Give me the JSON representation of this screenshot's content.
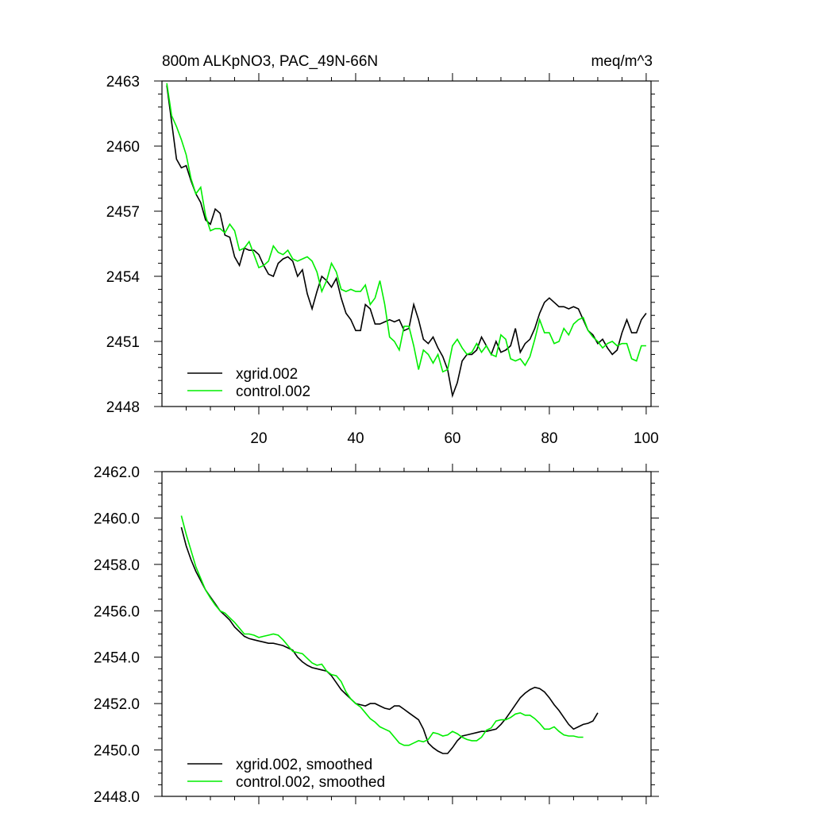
{
  "chart_data": [
    {
      "type": "line",
      "title": "800m ALKpNO3, PAC_49N-66N",
      "units": "meq/m^3",
      "xlim": [
        0,
        101
      ],
      "ylim": [
        2448,
        2463
      ],
      "x_ticks": [
        20,
        40,
        60,
        80,
        100
      ],
      "x_tick_labels": [
        "20",
        "40",
        "60",
        "80",
        "100"
      ],
      "y_ticks": [
        2448,
        2451,
        2454,
        2457,
        2460,
        2463
      ],
      "y_tick_labels": [
        "2448",
        "2451",
        "2454",
        "2457",
        "2460",
        "2463"
      ],
      "legend_position": "bottom-left",
      "series": [
        {
          "name": "xgrid.002",
          "color": "#000000",
          "values": [
            2462.8,
            2461.1,
            2459.4,
            2459.0,
            2459.1,
            2458.4,
            2457.8,
            2457.4,
            2456.6,
            2456.4,
            2457.1,
            2456.9,
            2455.9,
            2455.8,
            2454.9,
            2454.5,
            2455.3,
            2455.2,
            2455.2,
            2455.0,
            2454.5,
            2454.1,
            2454.0,
            2454.6,
            2454.8,
            2454.9,
            2454.7,
            2454.0,
            2454.3,
            2453.2,
            2452.5,
            2453.3,
            2454.0,
            2453.8,
            2453.5,
            2453.9,
            2453.0,
            2452.3,
            2452.0,
            2451.5,
            2451.5,
            2452.7,
            2452.5,
            2451.8,
            2451.8,
            2451.9,
            2452.0,
            2451.9,
            2452.0,
            2451.5,
            2451.6,
            2452.7,
            2452.0,
            2451.1,
            2450.9,
            2451.2,
            2450.7,
            2450.3,
            2449.7,
            2448.5,
            2449.1,
            2450.1,
            2450.4,
            2450.4,
            2450.6,
            2451.2,
            2450.8,
            2450.4,
            2451.0,
            2450.5,
            2450.6,
            2450.8,
            2451.6,
            2450.5,
            2450.9,
            2451.1,
            2451.6,
            2452.3,
            2452.8,
            2453.0,
            2452.8,
            2452.6,
            2452.6,
            2452.5,
            2452.6,
            2452.5,
            2452.0,
            2451.5,
            2451.3,
            2450.9,
            2451.1,
            2450.7,
            2450.4,
            2450.6,
            2451.4,
            2452.0,
            2451.4,
            2451.4,
            2452.0,
            2452.3
          ]
        },
        {
          "name": "control.002",
          "color": "#00ee00",
          "values": [
            2462.9,
            2461.4,
            2460.9,
            2460.3,
            2459.6,
            2458.5,
            2457.8,
            2458.1,
            2456.8,
            2456.1,
            2456.2,
            2456.2,
            2456.0,
            2456.4,
            2456.1,
            2455.2,
            2455.3,
            2455.6,
            2455.0,
            2454.4,
            2454.5,
            2454.7,
            2455.4,
            2455.1,
            2455.0,
            2455.2,
            2454.8,
            2454.7,
            2454.8,
            2454.9,
            2454.7,
            2454.2,
            2453.3,
            2453.8,
            2454.6,
            2454.2,
            2453.4,
            2453.3,
            2453.4,
            2453.3,
            2453.3,
            2453.6,
            2452.7,
            2453.0,
            2453.8,
            2452.7,
            2451.2,
            2451.0,
            2450.6,
            2451.7,
            2451.7,
            2450.8,
            2449.7,
            2450.6,
            2450.4,
            2450.0,
            2450.4,
            2449.6,
            2449.7,
            2450.8,
            2451.1,
            2450.7,
            2450.4,
            2450.5,
            2450.9,
            2450.5,
            2450.8,
            2450.4,
            2450.3,
            2451.3,
            2451.1,
            2450.2,
            2450.1,
            2450.2,
            2449.9,
            2450.3,
            2451.1,
            2452.0,
            2451.4,
            2451.4,
            2450.9,
            2451.0,
            2451.6,
            2451.3,
            2451.8,
            2452.0,
            2452.1,
            2451.5,
            2451.2,
            2451.0,
            2450.7,
            2450.9,
            2451.0,
            2450.8,
            2450.9,
            2450.9,
            2450.2,
            2450.1,
            2450.8,
            2450.8
          ]
        }
      ]
    },
    {
      "type": "line",
      "title": "",
      "units": "",
      "xlim": [
        0,
        101
      ],
      "ylim": [
        2448.0,
        2462.0
      ],
      "x_ticks": [
        20,
        40,
        60,
        80,
        100
      ],
      "x_tick_labels": [],
      "y_ticks": [
        2448.0,
        2450.0,
        2452.0,
        2454.0,
        2456.0,
        2458.0,
        2460.0,
        2462.0
      ],
      "y_tick_labels": [
        "2448.0",
        "2450.0",
        "2452.0",
        "2454.0",
        "2456.0",
        "2458.0",
        "2460.0",
        "2462.0"
      ],
      "legend_position": "bottom-left",
      "series": [
        {
          "name": "xgrid.002, smoothed",
          "color": "#000000",
          "x_start": 4,
          "values": [
            2459.6,
            2458.8,
            2458.2,
            2457.7,
            2457.3,
            2456.9,
            2456.6,
            2456.3,
            2456.0,
            2455.8,
            2455.6,
            2455.3,
            2455.1,
            2454.9,
            2454.8,
            2454.75,
            2454.7,
            2454.65,
            2454.6,
            2454.6,
            2454.55,
            2454.5,
            2454.4,
            2454.3,
            2454.0,
            2453.8,
            2453.65,
            2453.55,
            2453.5,
            2453.45,
            2453.4,
            2453.2,
            2452.9,
            2452.6,
            2452.4,
            2452.2,
            2452.0,
            2451.95,
            2451.9,
            2452.0,
            2452.0,
            2451.9,
            2451.8,
            2451.75,
            2451.9,
            2451.9,
            2451.75,
            2451.6,
            2451.45,
            2451.3,
            2450.9,
            2450.3,
            2450.1,
            2449.95,
            2449.85,
            2449.85,
            2450.1,
            2450.4,
            2450.6,
            2450.65,
            2450.7,
            2450.75,
            2450.8,
            2450.8,
            2450.85,
            2450.9,
            2451.1,
            2451.35,
            2451.65,
            2451.95,
            2452.25,
            2452.45,
            2452.6,
            2452.7,
            2452.65,
            2452.5,
            2452.25,
            2451.95,
            2451.7,
            2451.4,
            2451.1,
            2450.9,
            2451.0,
            2451.1,
            2451.15,
            2451.25,
            2451.6
          ]
        },
        {
          "name": "control.002, smoothed",
          "color": "#00ee00",
          "x_start": 4,
          "values": [
            2460.1,
            2459.3,
            2458.6,
            2457.9,
            2457.4,
            2456.9,
            2456.55,
            2456.25,
            2456.0,
            2455.9,
            2455.7,
            2455.5,
            2455.25,
            2455.0,
            2455.0,
            2454.95,
            2454.85,
            2454.9,
            2454.95,
            2455.0,
            2454.95,
            2454.75,
            2454.5,
            2454.25,
            2454.2,
            2454.15,
            2453.95,
            2453.75,
            2453.65,
            2453.7,
            2453.4,
            2453.25,
            2453.2,
            2452.95,
            2452.5,
            2452.2,
            2452.0,
            2451.85,
            2451.6,
            2451.35,
            2451.2,
            2451.0,
            2450.9,
            2450.8,
            2450.55,
            2450.3,
            2450.2,
            2450.2,
            2450.3,
            2450.4,
            2450.35,
            2450.45,
            2450.75,
            2450.7,
            2450.6,
            2450.65,
            2450.8,
            2450.7,
            2450.55,
            2450.45,
            2450.4,
            2450.4,
            2450.55,
            2450.85,
            2450.95,
            2451.25,
            2451.3,
            2451.3,
            2451.4,
            2451.55,
            2451.6,
            2451.5,
            2451.5,
            2451.35,
            2451.15,
            2450.9,
            2450.9,
            2451.0,
            2450.8,
            2450.65,
            2450.6,
            2450.6,
            2450.55,
            2450.55
          ]
        }
      ]
    }
  ]
}
